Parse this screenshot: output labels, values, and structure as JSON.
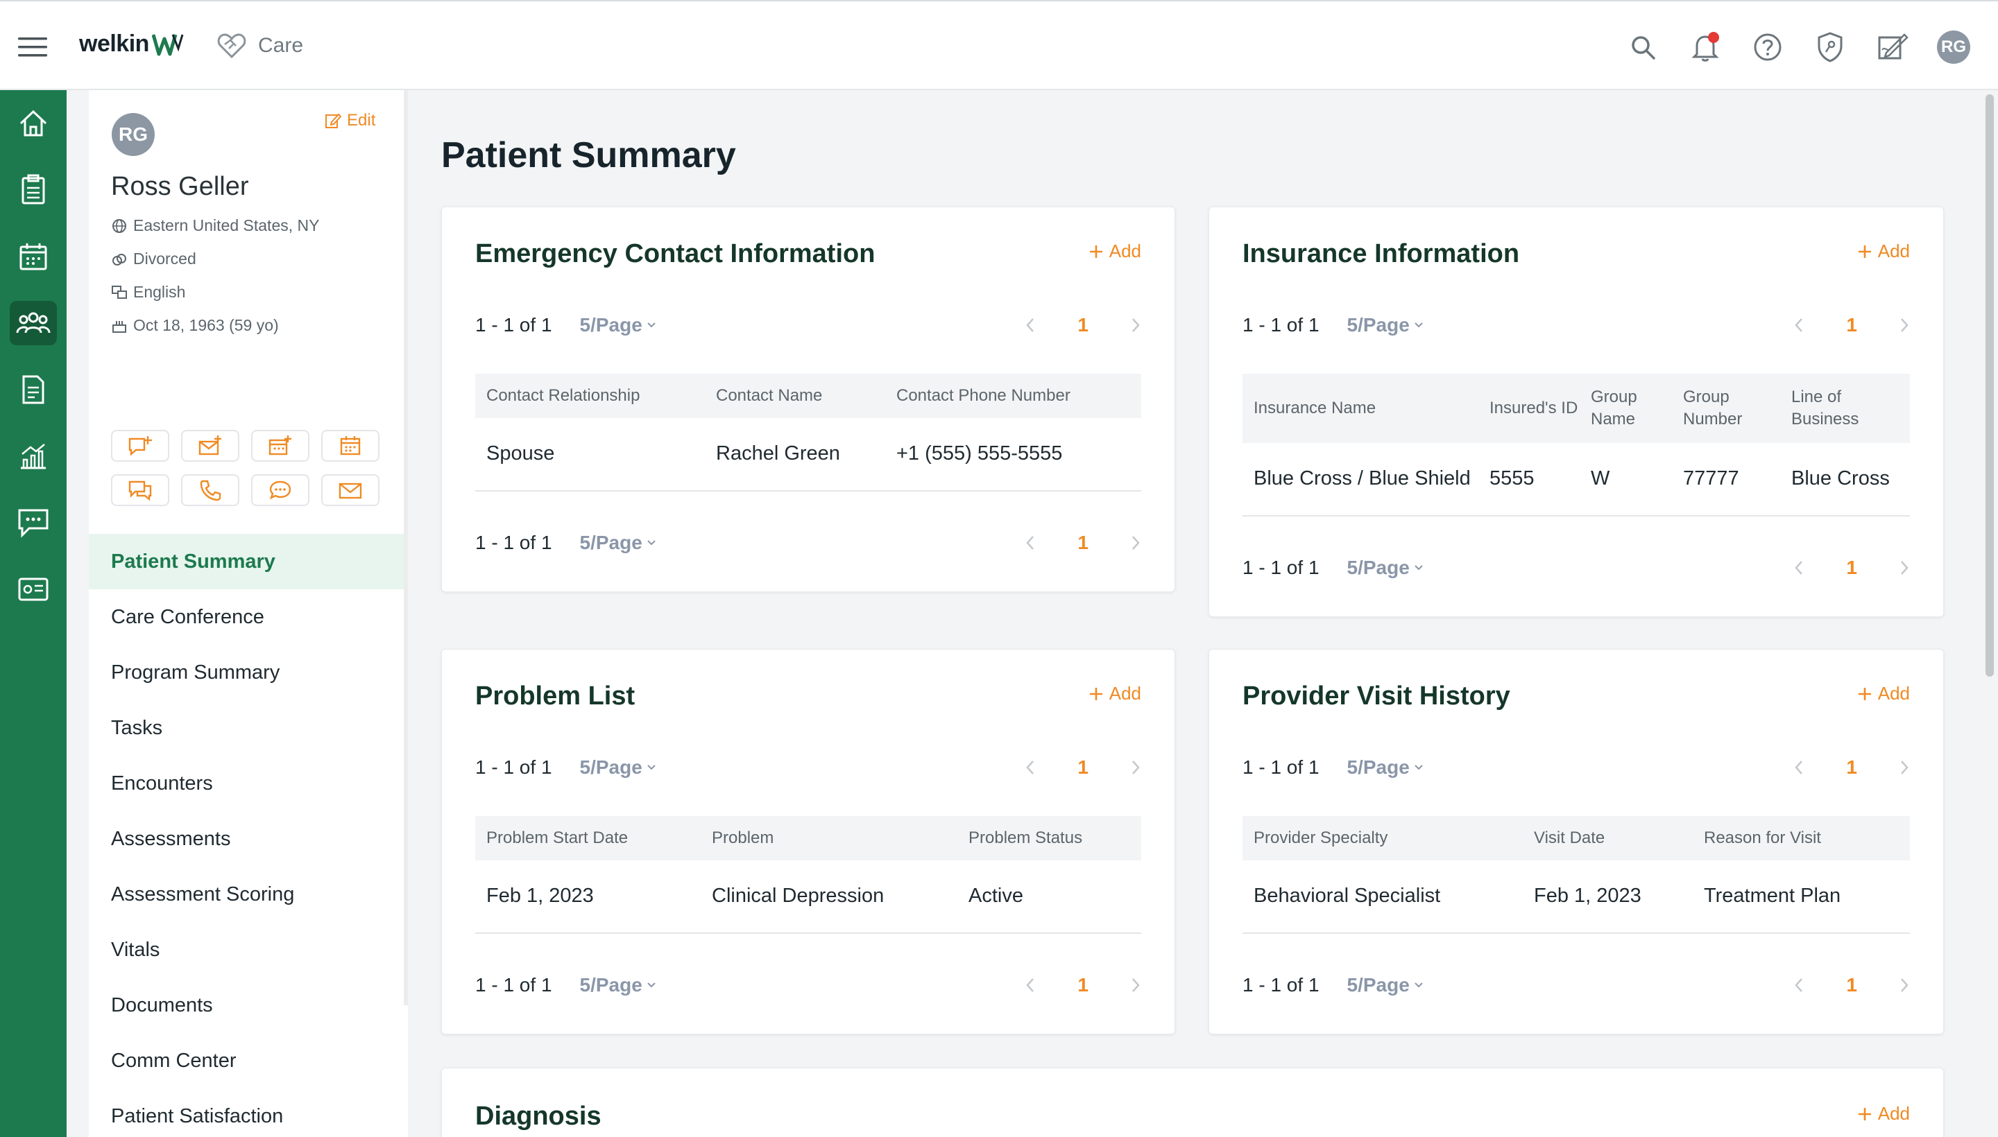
{
  "topbar": {
    "brand": "welkin",
    "app": "Care",
    "avatar_initials": "RG",
    "icons": [
      "search-icon",
      "bell-icon",
      "help-icon",
      "shield-icon",
      "signature-icon"
    ]
  },
  "rail": {
    "items": [
      "home-icon",
      "clipboard-icon",
      "calendar-icon",
      "patients-icon",
      "documents-icon",
      "analytics-icon",
      "chat-icon",
      "id-card-icon"
    ]
  },
  "patient": {
    "initials": "RG",
    "edit_label": "Edit",
    "name": "Ross Geller",
    "timezone": "Eastern United States, NY",
    "marital": "Divorced",
    "language": "English",
    "dob": "Oct 18, 1963 (59 yo)"
  },
  "nav": {
    "items": [
      "Patient Summary",
      "Care Conference",
      "Program Summary",
      "Tasks",
      "Encounters",
      "Assessments",
      "Assessment Scoring",
      "Vitals",
      "Documents",
      "Comm Center",
      "Patient Satisfaction"
    ]
  },
  "page": {
    "title": "Patient Summary"
  },
  "common": {
    "add_label": "Add",
    "range": "1 - 1 of 1",
    "per_page": "5/Page",
    "page_num": "1"
  },
  "emergency": {
    "title": "Emergency Contact Information",
    "headers": [
      "Contact Relationship",
      "Contact Name",
      "Contact Phone Number"
    ],
    "row": [
      "Spouse",
      "Rachel Green",
      "+1 (555) 555-5555"
    ]
  },
  "insurance": {
    "title": "Insurance Information",
    "headers": [
      "Insurance Name",
      "Insured's ID",
      "Group Name",
      "Group Number",
      "Line of Business"
    ],
    "row": [
      "Blue Cross / Blue Shield",
      "5555",
      "W",
      "77777",
      "Blue Cross"
    ]
  },
  "problems": {
    "title": "Problem List",
    "headers": [
      "Problem Start Date",
      "Problem",
      "Problem Status"
    ],
    "row": [
      "Feb 1, 2023",
      "Clinical Depression",
      "Active"
    ]
  },
  "visits": {
    "title": "Provider Visit History",
    "headers": [
      "Provider Specialty",
      "Visit Date",
      "Reason for Visit"
    ],
    "row": [
      "Behavioral Specialist",
      "Feb 1, 2023",
      "Treatment Plan"
    ]
  },
  "diagnosis": {
    "title": "Diagnosis"
  },
  "colors": {
    "brand_green": "#1d7a4e",
    "accent_orange": "#f08a24"
  }
}
